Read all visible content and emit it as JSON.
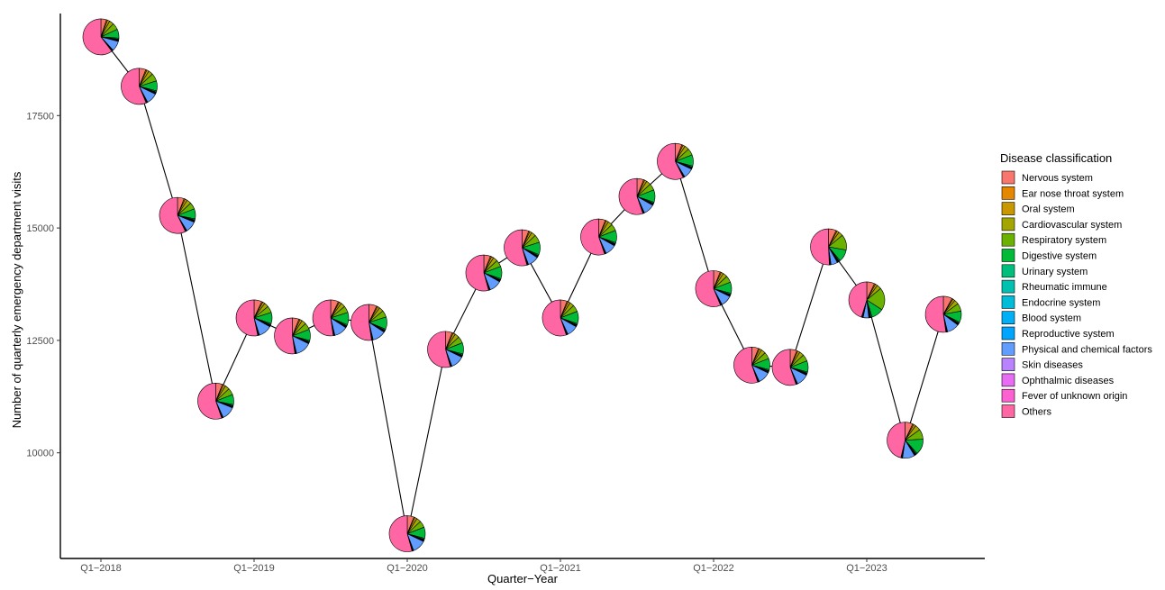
{
  "chart_data": {
    "type": "line",
    "subtype": "line with pie-chart markers",
    "title": "",
    "xlabel": "Quarter−Year",
    "ylabel": "Number of quarterly emergency department visits",
    "x_tick_labels": [
      "Q1−2018",
      "Q1−2019",
      "Q1−2020",
      "Q1−2021",
      "Q1−2022",
      "Q1−2023"
    ],
    "y_ticks": [
      10000,
      12500,
      15000,
      17500
    ],
    "ylim": [
      7700,
      19600
    ],
    "grid": false,
    "legend_position": "right",
    "legend_title": "Disease classification",
    "categories": [
      "Nervous system",
      "Ear nose throat system",
      "Oral system",
      "Cardiovascular system",
      "Respiratory system",
      "Digestive system",
      "Urinary system",
      "Rheumatic immune",
      "Endocrine system",
      "Blood system",
      "Reproductive system",
      "Physical and chemical factors",
      "Skin diseases",
      "Ophthalmic diseases",
      "Fever of unknown origin",
      "Others"
    ],
    "colors": [
      "#F8766D",
      "#E58700",
      "#C99800",
      "#A3A500",
      "#6BB100",
      "#00BA38",
      "#00BF7D",
      "#00C0AF",
      "#00BCD8",
      "#00B0F6",
      "#00A5FF",
      "#619CFF",
      "#B983FF",
      "#E76BF3",
      "#FD61D1",
      "#FF67A4"
    ],
    "x": [
      0,
      1,
      2,
      3,
      4,
      5,
      6,
      7,
      8,
      9,
      10,
      11,
      12,
      13,
      14,
      15,
      16,
      17,
      18,
      19,
      20,
      21,
      22
    ],
    "values": [
      19250,
      18150,
      15280,
      11150,
      13000,
      12600,
      13000,
      12900,
      8200,
      12300,
      14000,
      14560,
      13000,
      14800,
      15700,
      16480,
      13650,
      11950,
      11900,
      14580,
      13400,
      10280,
      13080
    ],
    "pie_shares": [
      [
        5,
        1,
        2,
        4,
        6,
        8,
        1,
        0.5,
        0.5,
        0.5,
        0.5,
        9,
        0.5,
        0.5,
        0.5,
        60
      ],
      [
        6,
        1,
        2,
        4,
        7,
        9,
        1,
        0.5,
        0.5,
        0.5,
        0.5,
        10,
        0.5,
        0.5,
        0.5,
        56
      ],
      [
        6,
        1,
        2,
        4,
        6,
        9,
        1,
        0.5,
        0.5,
        0.5,
        0.5,
        10,
        0.5,
        0.5,
        0.5,
        57
      ],
      [
        6,
        1,
        2,
        4,
        6,
        9,
        1,
        0.5,
        0.5,
        0.5,
        0.5,
        12,
        0.5,
        0.5,
        0.5,
        55
      ],
      [
        7,
        1,
        2,
        4,
        6,
        10,
        1,
        0.5,
        0.5,
        0.5,
        0.5,
        12,
        0.5,
        0.5,
        0.5,
        53
      ],
      [
        6,
        1,
        2,
        4,
        6,
        10,
        1,
        0.5,
        0.5,
        0.5,
        0.5,
        14,
        0.5,
        0.5,
        0.5,
        52
      ],
      [
        7,
        1,
        2,
        4,
        6,
        11,
        1,
        0.5,
        0.5,
        0.5,
        0.5,
        12,
        0.5,
        0.5,
        0.5,
        52
      ],
      [
        7,
        1,
        2,
        4,
        6,
        11,
        1,
        0.5,
        0.5,
        0.5,
        0.5,
        12,
        0.5,
        0.5,
        0.5,
        52
      ],
      [
        6,
        1,
        2,
        4,
        6,
        10,
        1,
        0.5,
        0.5,
        0.5,
        0.5,
        12,
        0.5,
        0.5,
        0.5,
        54
      ],
      [
        6,
        1,
        2,
        4,
        6,
        10,
        1,
        0.5,
        0.5,
        0.5,
        0.5,
        12,
        0.5,
        0.5,
        0.5,
        54
      ],
      [
        6,
        1,
        2,
        4,
        6,
        11,
        1,
        0.5,
        0.5,
        0.5,
        0.5,
        11,
        0.5,
        0.5,
        0.5,
        54
      ],
      [
        6,
        1,
        2,
        4,
        7,
        11,
        1,
        0.5,
        0.5,
        0.5,
        0.5,
        10,
        0.5,
        0.5,
        0.5,
        54
      ],
      [
        6,
        1,
        2,
        4,
        6,
        11,
        1,
        0.5,
        0.5,
        0.5,
        0.5,
        10,
        0.5,
        0.5,
        0.5,
        55
      ],
      [
        6,
        1,
        2,
        4,
        6,
        11,
        1,
        0.5,
        0.5,
        0.5,
        0.5,
        10,
        0.5,
        0.5,
        0.5,
        55
      ],
      [
        6,
        1,
        2,
        4,
        6,
        11,
        1,
        0.5,
        0.5,
        0.5,
        0.5,
        10,
        0.5,
        0.5,
        0.5,
        55
      ],
      [
        6,
        1,
        2,
        4,
        6,
        10,
        1,
        0.5,
        0.5,
        0.5,
        0.5,
        9,
        0.5,
        0.5,
        0.5,
        57
      ],
      [
        6,
        1,
        2,
        4,
        6,
        10,
        1,
        0.5,
        0.5,
        0.5,
        0.5,
        10,
        0.5,
        0.5,
        0.5,
        56
      ],
      [
        6,
        1,
        2,
        4,
        6,
        10,
        1,
        0.5,
        0.5,
        0.5,
        0.5,
        11,
        0.5,
        0.5,
        0.5,
        55
      ],
      [
        6,
        1,
        2,
        4,
        6,
        10,
        1,
        0.5,
        0.5,
        0.5,
        0.5,
        11,
        0.5,
        0.5,
        0.5,
        55
      ],
      [
        7,
        1,
        2,
        4,
        14,
        11,
        1,
        0.5,
        0.5,
        0.5,
        0.5,
        6,
        0.5,
        0.5,
        0.5,
        51
      ],
      [
        7,
        1,
        2,
        4,
        20,
        11,
        1,
        0.5,
        0.5,
        0.5,
        0.5,
        5,
        0.5,
        0.5,
        0.5,
        45
      ],
      [
        7,
        1,
        2,
        5,
        9,
        14,
        1,
        0.5,
        0.5,
        0.5,
        0.5,
        11,
        0.5,
        0.5,
        0.5,
        46
      ],
      [
        8,
        1,
        2,
        4,
        7,
        10,
        1,
        0.5,
        0.5,
        0.5,
        0.5,
        11,
        0.5,
        0.5,
        0.5,
        52
      ]
    ]
  }
}
